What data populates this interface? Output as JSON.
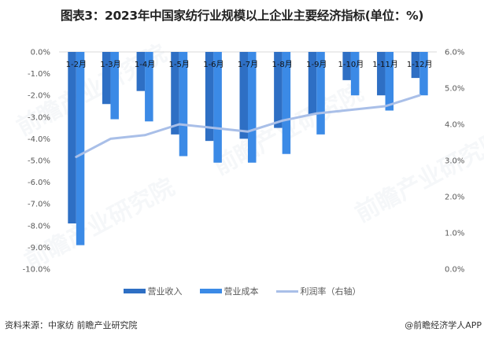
{
  "title": "图表3：2023年中国家纺行业规模以上企业主要经济指标(单位：%)",
  "colors": {
    "revenue": "#2e6fc4",
    "cost": "#3b8ae6",
    "margin": "#a9bfe8",
    "axis": "#d9d9d9"
  },
  "legend": [
    {
      "label": "营业收入",
      "type": "bar",
      "color": "#2e6fc4"
    },
    {
      "label": "营业成本",
      "type": "bar",
      "color": "#3b8ae6"
    },
    {
      "label": "利润率（右轴）",
      "type": "line",
      "color": "#a9bfe8"
    }
  ],
  "footer": {
    "source": "资料来源：中家纺 前瞻产业研究院",
    "brand": "@前瞻经济学人APP"
  },
  "watermark": "前瞻产业研究院",
  "chart_data": {
    "type": "bar",
    "title": "图表3：2023年中国家纺行业规模以上企业主要经济指标(单位：%)",
    "categories": [
      "1-2月",
      "1-3月",
      "1-4月",
      "1-5月",
      "1-6月",
      "1-7月",
      "1-8月",
      "1-9月",
      "1-10月",
      "1-11月",
      "1-12月"
    ],
    "series": [
      {
        "name": "营业收入",
        "type": "bar",
        "axis": "left",
        "values": [
          -7.9,
          -2.4,
          -1.8,
          -3.8,
          -4.1,
          -4.0,
          -3.5,
          -2.9,
          -1.3,
          -2.0,
          -1.2
        ]
      },
      {
        "name": "营业成本",
        "type": "bar",
        "axis": "left",
        "values": [
          -8.9,
          -3.1,
          -3.2,
          -4.8,
          -5.1,
          -5.1,
          -4.7,
          -3.8,
          -2.0,
          -2.7,
          -2.0
        ]
      },
      {
        "name": "利润率（右轴）",
        "type": "line",
        "axis": "right",
        "values": [
          3.1,
          3.6,
          3.7,
          4.0,
          3.9,
          3.8,
          4.1,
          4.3,
          4.4,
          4.5,
          4.8
        ]
      }
    ],
    "left_axis": {
      "ylim": [
        -10,
        0
      ],
      "ticks": [
        "0.0%",
        "-1.0%",
        "-2.0%",
        "-3.0%",
        "-4.0%",
        "-5.0%",
        "-6.0%",
        "-7.0%",
        "-8.0%",
        "-9.0%",
        "-10.0%"
      ]
    },
    "right_axis": {
      "ylim": [
        0,
        6
      ],
      "ticks": [
        "6.0%",
        "5.0%",
        "4.0%",
        "3.0%",
        "2.0%",
        "1.0%",
        "0.0%"
      ]
    },
    "xlabel": "",
    "ylabel": "",
    "grid": false,
    "legend_position": "bottom",
    "category_labels_position": "top"
  }
}
